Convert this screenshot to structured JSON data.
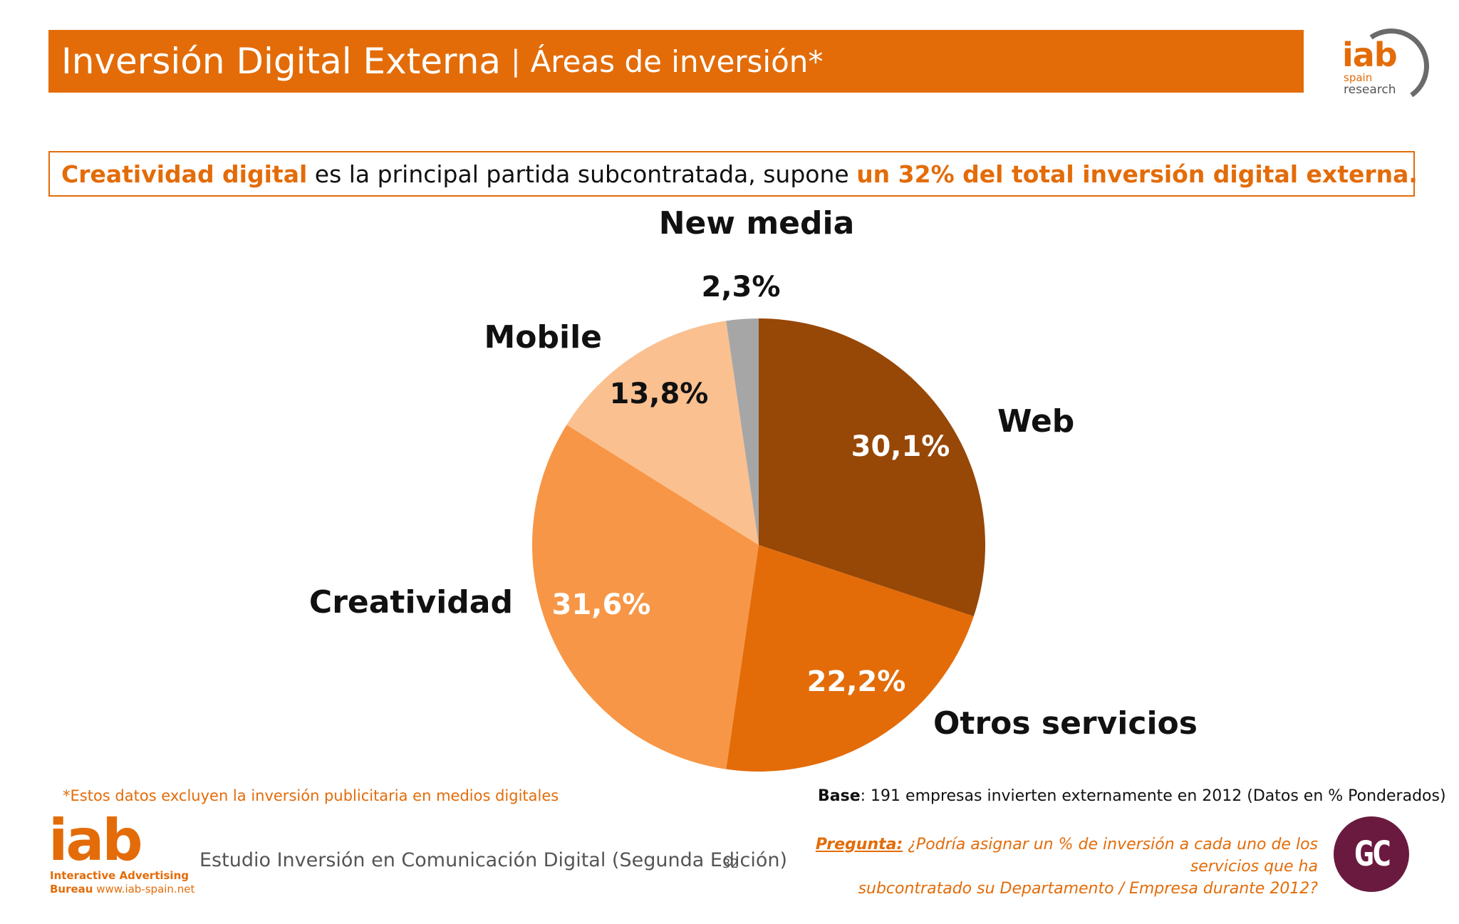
{
  "header": {
    "title": "Inversión Digital Externa",
    "separator": "|",
    "subtitle": "Áreas de inversión*"
  },
  "logo_top": {
    "word": "iab",
    "line1": "spain",
    "line2": "research"
  },
  "headline": {
    "part1": "Creatividad digital",
    "part2": " es la principal partida subcontratada, supone ",
    "part3": "un 32% del total inversión digital externa."
  },
  "chart_data": {
    "type": "pie",
    "start_angle_deg": 0,
    "direction": "clockwise",
    "slices": [
      {
        "name": "Web",
        "value": 30.1,
        "label": "30,1%",
        "color": "#974706",
        "value_text_color": "#ffffff"
      },
      {
        "name": "Otros servicios",
        "value": 22.2,
        "label": "22,2%",
        "color": "#e36c09",
        "value_text_color": "#ffffff"
      },
      {
        "name": "Creatividad",
        "value": 31.6,
        "label": "31,6%",
        "color": "#f79646",
        "value_text_color": "#ffffff"
      },
      {
        "name": "Mobile",
        "value": 13.8,
        "label": "13,8%",
        "color": "#fac090",
        "value_text_color": "#111111"
      },
      {
        "name": "New media",
        "value": 2.3,
        "label": "2,3%",
        "color": "#a6a6a6",
        "value_text_color": "#111111"
      }
    ]
  },
  "footnote": "*Estos datos excluyen la inversión publicitaria en medios digitales",
  "base": {
    "label": "Base",
    "text": ": 191 empresas invierten externamente en 2012 (Datos en % Ponderados)"
  },
  "logo_bottom": {
    "word": "iab",
    "line1": "Interactive Advertising",
    "line2_bold": "Bureau",
    "line2_rest": " www.iab-spain.net"
  },
  "study_title": "Estudio Inversión en Comunicación Digital (Segunda Edición)",
  "page_number": "32",
  "question": {
    "label": "Pregunta:",
    "line1": " ¿Podría asignar un % de inversión a cada uno de los servicios que ha",
    "line2": "subcontratado su Departamento / Empresa durante 2012?"
  },
  "gc_logo": "GC"
}
